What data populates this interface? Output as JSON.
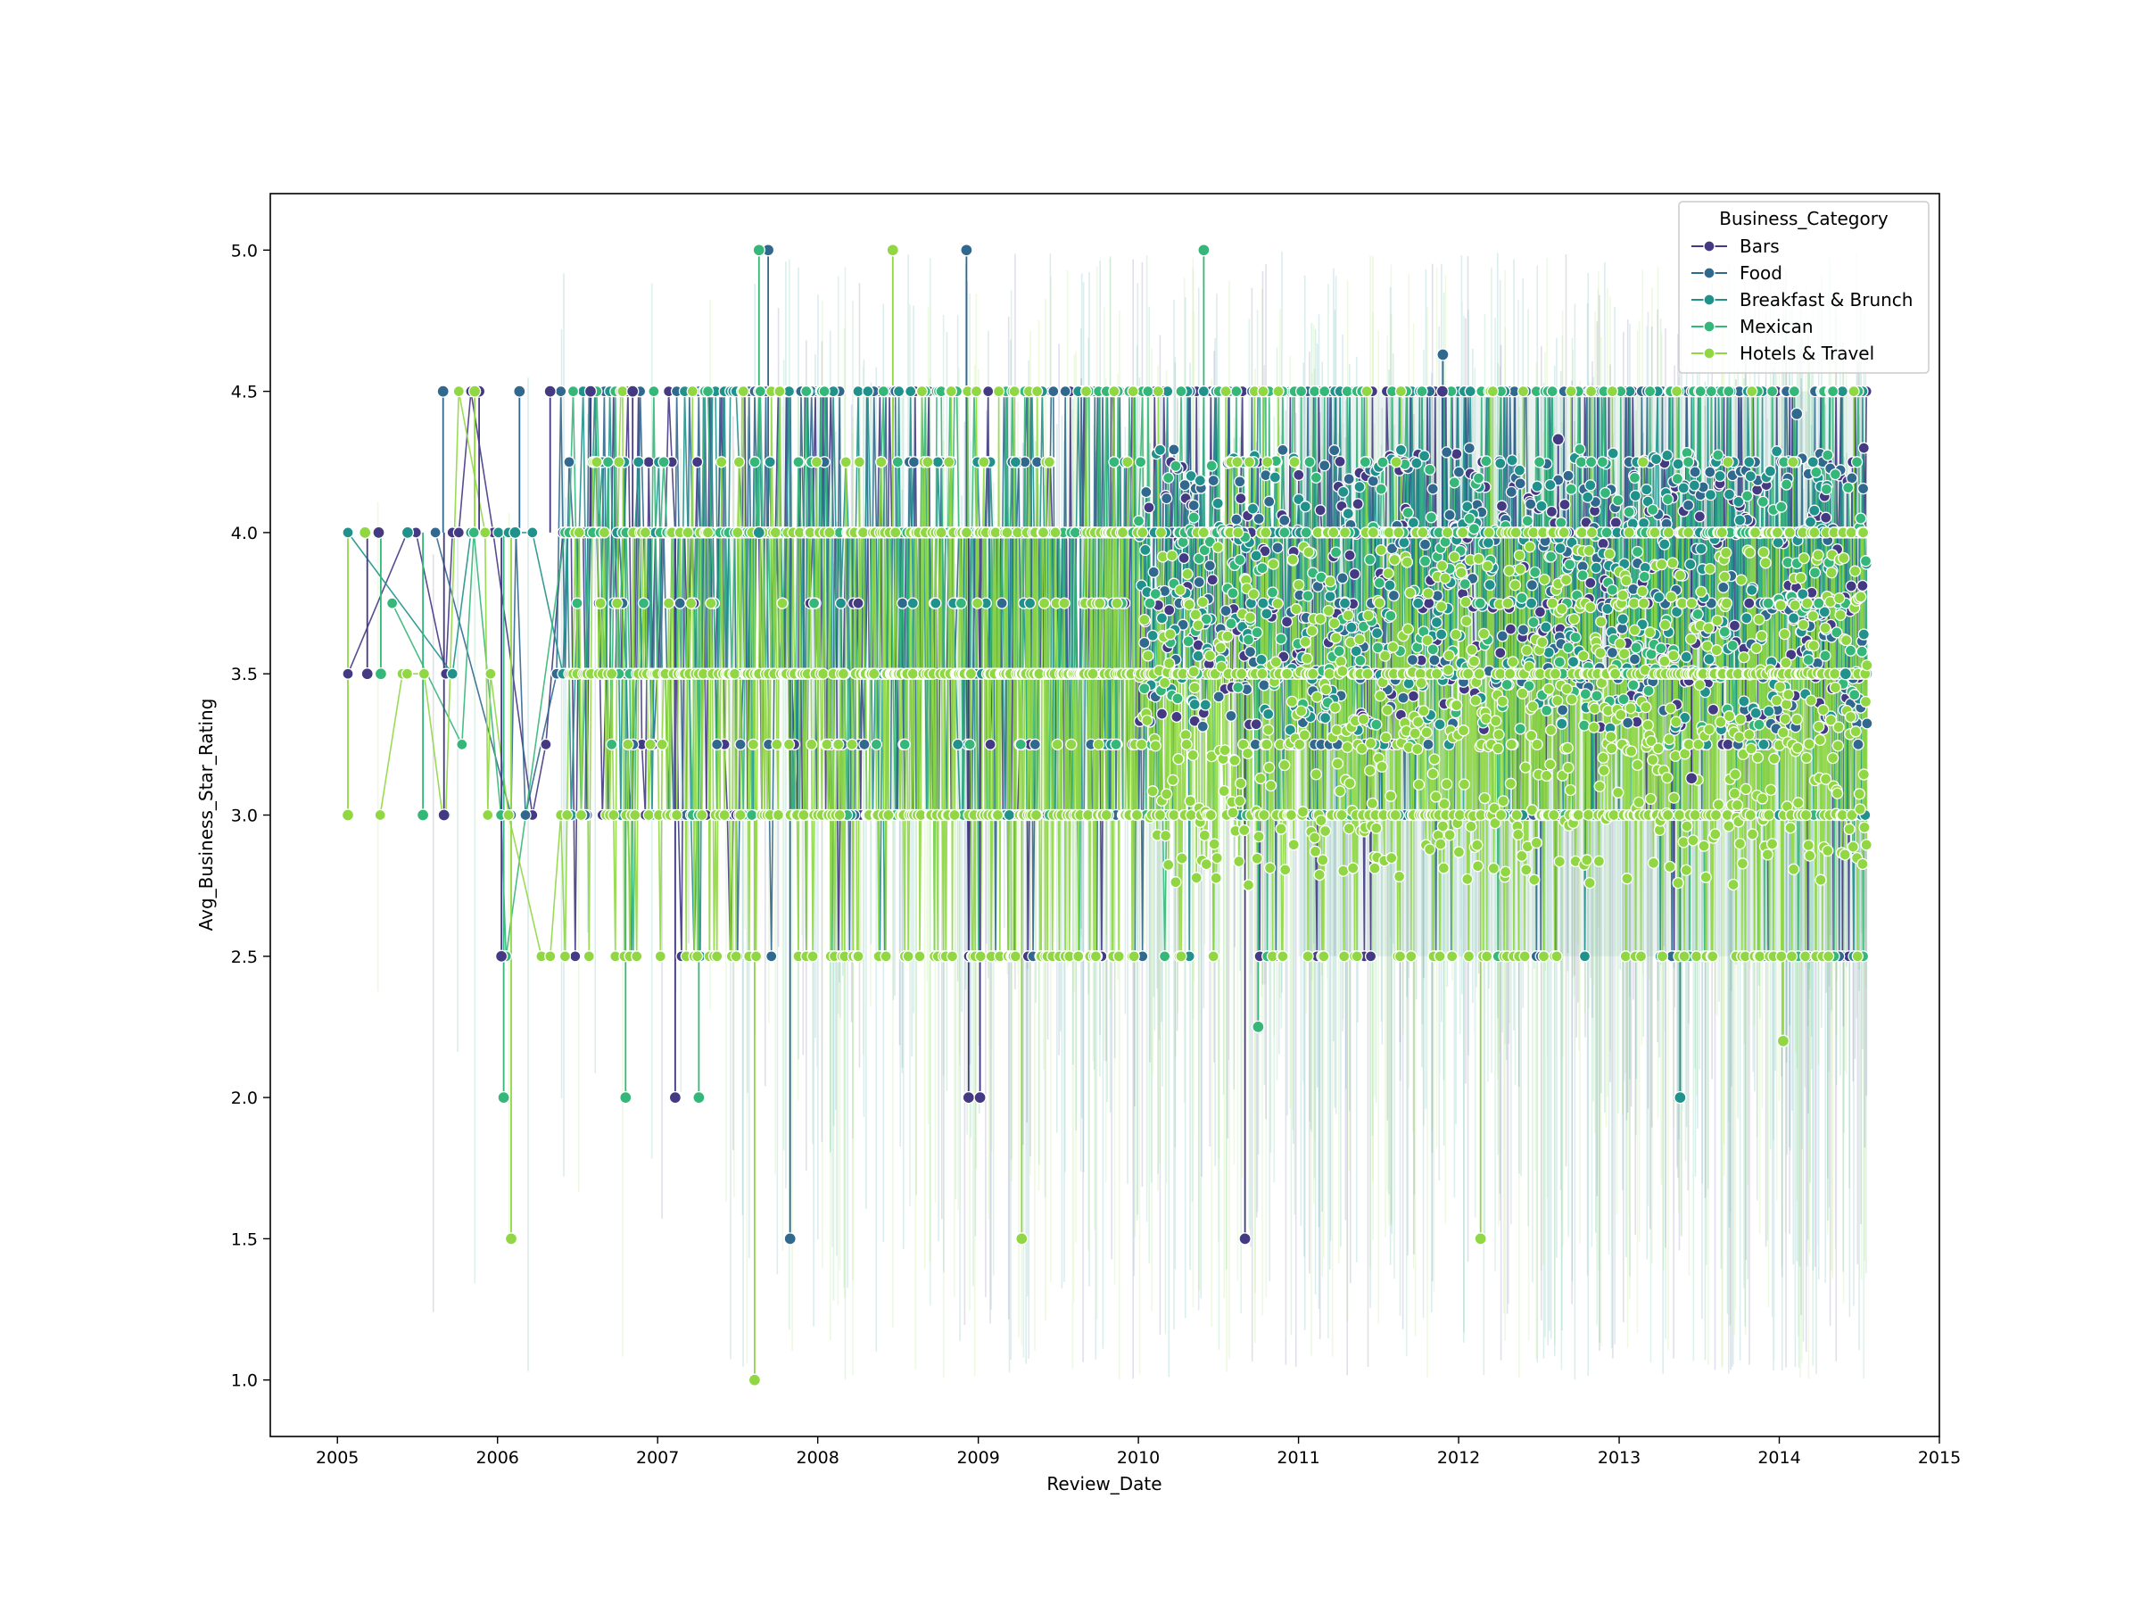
{
  "chart_data": {
    "type": "line",
    "title": "",
    "xlabel": "Review_Date",
    "ylabel": "Avg_Business_Star_Rating",
    "xlim": [
      "2004-08-01",
      "2015-01-01"
    ],
    "ylim": [
      0.8,
      5.2
    ],
    "x_ticks": [
      "2005",
      "2006",
      "2007",
      "2008",
      "2009",
      "2010",
      "2011",
      "2012",
      "2013",
      "2014",
      "2015"
    ],
    "y_ticks": [
      "1.0",
      "1.5",
      "2.0",
      "2.5",
      "3.0",
      "3.5",
      "4.0",
      "4.5",
      "5.0"
    ],
    "grid": false,
    "markers": true,
    "confidence_band": true,
    "legend": {
      "title": "Business_Category",
      "placement": "top-right"
    },
    "date_range": [
      "2005-01-25",
      "2014-07-20"
    ],
    "series": [
      {
        "name": "Bars",
        "color": "#443983",
        "points": [
          [
            "2005-03-10",
            3.5
          ],
          [
            "2005-04-05",
            4.0
          ],
          [
            "2005-09-01",
            3.0
          ],
          [
            "2005-11-20",
            4.5
          ],
          [
            "2006-01-10",
            2.5
          ],
          [
            "2006-05-01",
            4.5
          ],
          [
            "2006-08-01",
            4.5
          ],
          [
            "2006-11-05",
            4.5
          ],
          [
            "2007-02-10",
            2.0
          ],
          [
            "2008-12-10",
            2.0
          ],
          [
            "2009-01-05",
            2.0
          ],
          [
            "2010-09-01",
            1.5
          ],
          [
            "2011-11-25",
            4.5
          ],
          [
            "2012-08-15",
            4.33
          ],
          [
            "2013-06-15",
            3.13
          ]
        ]
      },
      {
        "name": "Food",
        "color": "#31688e",
        "points": [
          [
            "2005-08-30",
            4.5
          ],
          [
            "2006-02-20",
            4.5
          ],
          [
            "2007-10-30",
            1.5
          ],
          [
            "2007-09-10",
            5.0
          ],
          [
            "2008-12-05",
            5.0
          ],
          [
            "2011-11-26",
            4.63
          ],
          [
            "2014-02-10",
            4.42
          ]
        ]
      },
      {
        "name": "Breakfast & Brunch",
        "color": "#21918c",
        "points": [
          [
            "2005-06-10",
            4.0
          ],
          [
            "2006-02-10",
            4.0
          ],
          [
            "2007-08-20",
            4.0
          ],
          [
            "2013-05-20",
            2.0
          ],
          [
            "2014-06-01",
            3.5
          ]
        ]
      },
      {
        "name": "Mexican",
        "color": "#35b779",
        "points": [
          [
            "2005-04-10",
            3.5
          ],
          [
            "2005-07-15",
            3.0
          ],
          [
            "2006-01-15",
            2.0
          ],
          [
            "2006-10-20",
            2.0
          ],
          [
            "2007-04-05",
            2.0
          ],
          [
            "2007-08-20",
            5.0
          ],
          [
            "2010-05-30",
            5.0
          ],
          [
            "2010-10-01",
            2.25
          ]
        ]
      },
      {
        "name": "Hotels & Travel",
        "color": "#90d743",
        "points": [
          [
            "2005-01-25",
            3.0
          ],
          [
            "2005-03-05",
            4.0
          ],
          [
            "2005-11-10",
            4.5
          ],
          [
            "2006-02-01",
            1.5
          ],
          [
            "2007-08-10",
            1.0
          ],
          [
            "2008-06-20",
            5.0
          ],
          [
            "2009-04-10",
            1.5
          ],
          [
            "2012-02-20",
            1.5
          ],
          [
            "2014-01-10",
            2.2
          ]
        ]
      }
    ]
  }
}
